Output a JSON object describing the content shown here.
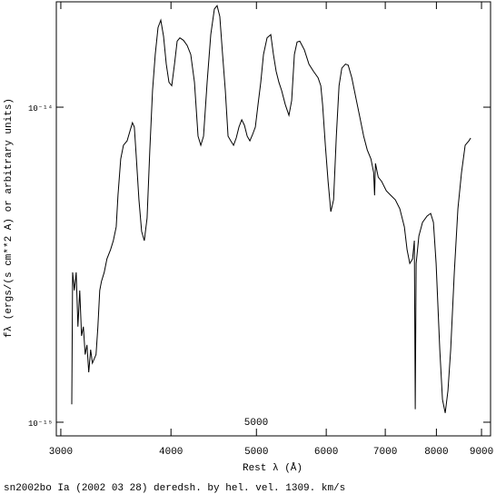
{
  "chart_data": {
    "type": "line",
    "xlabel": "Rest λ (Å)",
    "ylabel": "fλ (ergs/(s cm**2 A) or arbitrary units)",
    "caption": "sn2002bo Ia (2002 03 28) deredsh. by hel. vel.  1309. km/s",
    "annotation": "5000",
    "xlog": true,
    "ylog": true,
    "grid": false,
    "xlim": [
      2965,
      9215
    ],
    "ylim": [
      9.05e-16,
      2.16e-14
    ],
    "xticks": [
      3000,
      4000,
      5000,
      6000,
      7000,
      8000,
      9000
    ],
    "yticks": [
      {
        "value": 1e-14,
        "label": "10⁻¹⁴"
      },
      {
        "value": 1e-15,
        "label": "10⁻¹⁵"
      }
    ],
    "series": [
      {
        "color": "#000000",
        "x": [
          3087,
          3094,
          3108,
          3123,
          3137,
          3152,
          3167,
          3182,
          3197,
          3212,
          3227,
          3243,
          3258,
          3274,
          3289,
          3305,
          3321,
          3336,
          3360,
          3384,
          3416,
          3441,
          3467,
          3483,
          3508,
          3533,
          3567,
          3592,
          3617,
          3635,
          3652,
          3679,
          3705,
          3731,
          3758,
          3785,
          3812,
          3839,
          3867,
          3895,
          3923,
          3951,
          3979,
          4008,
          4037,
          4065,
          4094,
          4133,
          4173,
          4212,
          4253,
          4293,
          4324,
          4355,
          4396,
          4438,
          4480,
          4512,
          4544,
          4577,
          4610,
          4643,
          4676,
          4710,
          4743,
          4777,
          4812,
          4846,
          4881,
          4915,
          4950,
          4986,
          5021,
          5057,
          5093,
          5141,
          5191,
          5227,
          5264,
          5302,
          5340,
          5391,
          5443,
          5482,
          5521,
          5560,
          5600,
          5667,
          5735,
          5803,
          5873,
          5915,
          5943,
          5986,
          6029,
          6072,
          6116,
          6160,
          6204,
          6249,
          6309,
          6354,
          6414,
          6492,
          6553,
          6616,
          6678,
          6743,
          6791,
          6807,
          6823,
          6872,
          6935,
          7019,
          7102,
          7186,
          7271,
          7358,
          7410,
          7463,
          7517,
          7552,
          7570,
          7588,
          7642,
          7715,
          7807,
          7881,
          7938,
          7994,
          8071,
          8128,
          8186,
          8245,
          8304,
          8383,
          8462,
          8542,
          8624,
          8709,
          8749
        ],
        "values": [
          1.14e-15,
          2.99e-15,
          2.62e-15,
          2.99e-15,
          2.01e-15,
          2.62e-15,
          1.88e-15,
          2.01e-15,
          1.64e-15,
          1.76e-15,
          1.44e-15,
          1.7e-15,
          1.54e-15,
          1.59e-15,
          1.64e-15,
          2.01e-15,
          2.62e-15,
          2.8e-15,
          2.99e-15,
          3.3e-15,
          3.53e-15,
          3.77e-15,
          4.17e-15,
          5.25e-15,
          6.85e-15,
          7.57e-15,
          7.82e-15,
          8.36e-15,
          8.93e-15,
          8.65e-15,
          7.08e-15,
          5.08e-15,
          4.03e-15,
          3.77e-15,
          4.45e-15,
          7.32e-15,
          1.13e-14,
          1.47e-14,
          1.79e-14,
          1.89e-14,
          1.68e-14,
          1.37e-14,
          1.2e-14,
          1.17e-14,
          1.37e-14,
          1.62e-14,
          1.66e-14,
          1.63e-14,
          1.57e-14,
          1.47e-14,
          1.2e-14,
          8.09e-15,
          7.57e-15,
          8.09e-15,
          1.2e-14,
          1.7e-14,
          2.05e-14,
          2.1e-14,
          1.94e-14,
          1.47e-14,
          1.13e-14,
          8.09e-15,
          7.82e-15,
          7.57e-15,
          7.98e-15,
          8.65e-15,
          9.12e-15,
          8.76e-15,
          8.09e-15,
          7.82e-15,
          8.19e-15,
          8.65e-15,
          1.02e-14,
          1.2e-14,
          1.47e-14,
          1.66e-14,
          1.7e-14,
          1.47e-14,
          1.3e-14,
          1.2e-14,
          1.13e-14,
          1.02e-14,
          9.42e-15,
          1.05e-14,
          1.47e-14,
          1.61e-14,
          1.62e-14,
          1.52e-14,
          1.37e-14,
          1.3e-14,
          1.24e-14,
          1.17e-14,
          1.02e-14,
          7.57e-15,
          5.81e-15,
          4.66e-15,
          5.08e-15,
          8.09e-15,
          1.17e-14,
          1.33e-14,
          1.37e-14,
          1.36e-14,
          1.24e-14,
          1.05e-14,
          9.24e-15,
          8.09e-15,
          7.32e-15,
          6.85e-15,
          6.2e-15,
          5.25e-15,
          6.63e-15,
          6e-15,
          5.81e-15,
          5.43e-15,
          5.25e-15,
          5.08e-15,
          4.76e-15,
          4.17e-15,
          3.53e-15,
          3.19e-15,
          3.3e-15,
          3.77e-15,
          1.1e-15,
          3.19e-15,
          3.9e-15,
          4.31e-15,
          4.51e-15,
          4.6e-15,
          4.31e-15,
          3.19e-15,
          1.7e-15,
          1.18e-15,
          1.07e-15,
          1.26e-15,
          1.7e-15,
          2.99e-15,
          4.76e-15,
          6.2e-15,
          7.57e-15,
          7.82e-15,
          7.98e-15
        ]
      }
    ]
  }
}
